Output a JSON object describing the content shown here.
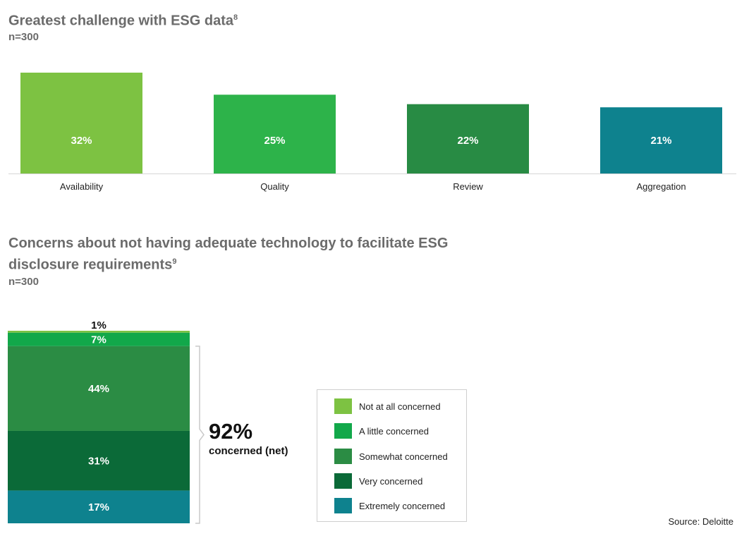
{
  "chart1": {
    "title": "Greatest challenge with ESG data",
    "footnote": "8",
    "subtitle": "n=300"
  },
  "chart2": {
    "title": "Concerns about not having adequate technology to facilitate ESG disclosure requirements",
    "footnote": "9",
    "subtitle": "n=300",
    "net_value": "92%",
    "net_label": "concerned (net)"
  },
  "source": "Source: Deloitte",
  "chart_data": [
    {
      "type": "bar",
      "title": "Greatest challenge with ESG data",
      "categories": [
        "Availability",
        "Quality",
        "Review",
        "Aggregation"
      ],
      "values": [
        32,
        25,
        22,
        21
      ],
      "value_labels": [
        "32%",
        "25%",
        "22%",
        "21%"
      ],
      "colors": [
        "#7dc242",
        "#2db34a",
        "#288b44",
        "#0e828e"
      ],
      "ylim": [
        0,
        32
      ],
      "grid": false,
      "legend": "none"
    },
    {
      "type": "bar",
      "stacked": true,
      "title": "Concerns about not having adequate technology to facilitate ESG disclosure requirements",
      "series": [
        {
          "name": "Not at all concerned",
          "values": [
            1
          ],
          "label": "1%",
          "color": "#7dc242"
        },
        {
          "name": "A little concerned",
          "values": [
            7
          ],
          "label": "7%",
          "color": "#12a84a"
        },
        {
          "name": "Somewhat concerned",
          "values": [
            44
          ],
          "label": "44%",
          "color": "#2b8c44"
        },
        {
          "name": "Very concerned",
          "values": [
            31
          ],
          "label": "31%",
          "color": "#0b6a38"
        },
        {
          "name": "Extremely concerned",
          "values": [
            17
          ],
          "label": "17%",
          "color": "#0e828e"
        }
      ],
      "annotation": "92% concerned (net)",
      "legend": "right"
    }
  ]
}
